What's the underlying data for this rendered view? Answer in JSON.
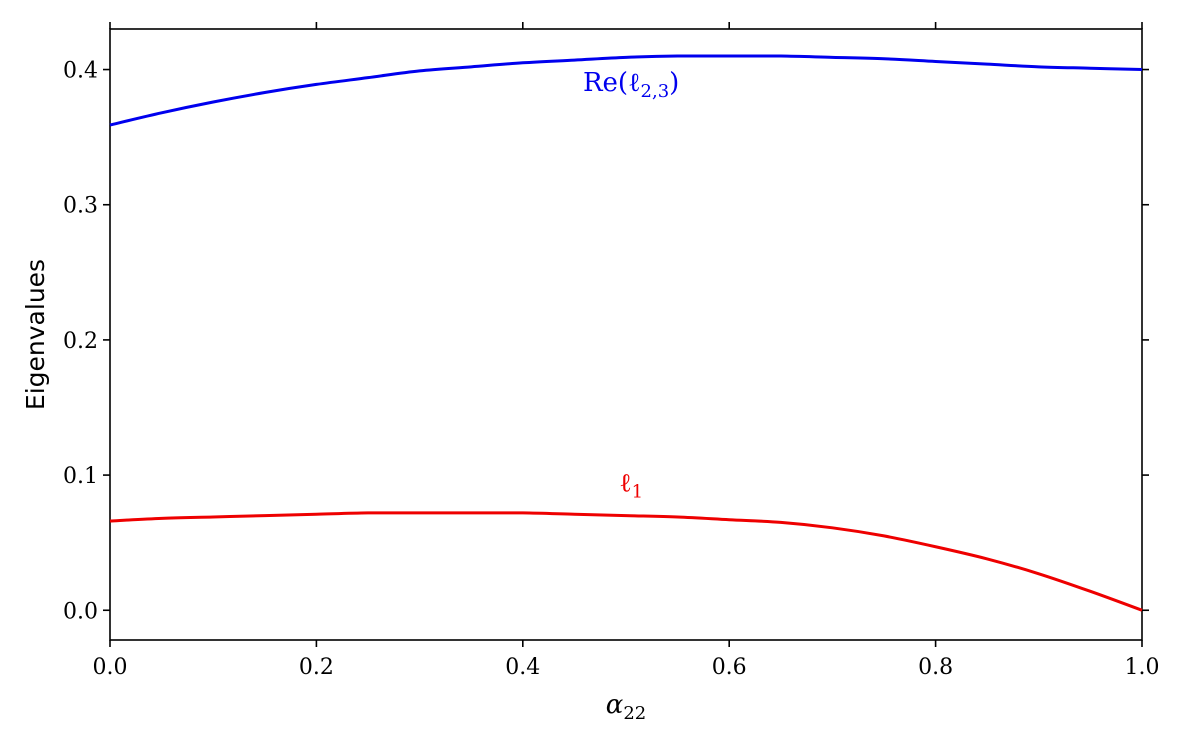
{
  "chart_data": {
    "type": "line",
    "xlabel": {
      "base": "α",
      "sub": "22"
    },
    "ylabel": "Eigenvalues",
    "xlim": [
      0.0,
      1.0
    ],
    "ylim": [
      -0.022,
      0.43
    ],
    "x_ticks": [
      "0.0",
      "0.2",
      "0.4",
      "0.6",
      "0.8",
      "1.0"
    ],
    "y_ticks": [
      "0.0",
      "0.1",
      "0.2",
      "0.3",
      "0.4"
    ],
    "grid": false,
    "series": [
      {
        "label": {
          "main": "Re(ℓ",
          "sub": "2,3",
          "close": ")"
        },
        "label_at": [
          0.505,
          0.384
        ],
        "color": "#0000ee",
        "x": [
          0.0,
          0.05,
          0.1,
          0.15,
          0.2,
          0.25,
          0.3,
          0.35,
          0.4,
          0.45,
          0.5,
          0.55,
          0.6,
          0.65,
          0.7,
          0.75,
          0.8,
          0.85,
          0.9,
          0.95,
          1.0
        ],
        "y": [
          0.359,
          0.368,
          0.376,
          0.383,
          0.389,
          0.394,
          0.399,
          0.402,
          0.405,
          0.407,
          0.409,
          0.41,
          0.41,
          0.41,
          0.409,
          0.408,
          0.406,
          0.404,
          0.402,
          0.401,
          0.4
        ]
      },
      {
        "label": {
          "main": "ℓ",
          "sub": "1",
          "close": ""
        },
        "label_at": [
          0.505,
          0.088
        ],
        "color": "#ee0000",
        "x": [
          0.0,
          0.05,
          0.1,
          0.15,
          0.2,
          0.25,
          0.3,
          0.35,
          0.4,
          0.45,
          0.5,
          0.55,
          0.6,
          0.65,
          0.7,
          0.75,
          0.8,
          0.85,
          0.9,
          0.95,
          1.0
        ],
        "y": [
          0.066,
          0.068,
          0.069,
          0.07,
          0.071,
          0.072,
          0.072,
          0.072,
          0.072,
          0.071,
          0.07,
          0.069,
          0.067,
          0.065,
          0.061,
          0.055,
          0.047,
          0.038,
          0.027,
          0.014,
          0.0
        ]
      }
    ]
  }
}
